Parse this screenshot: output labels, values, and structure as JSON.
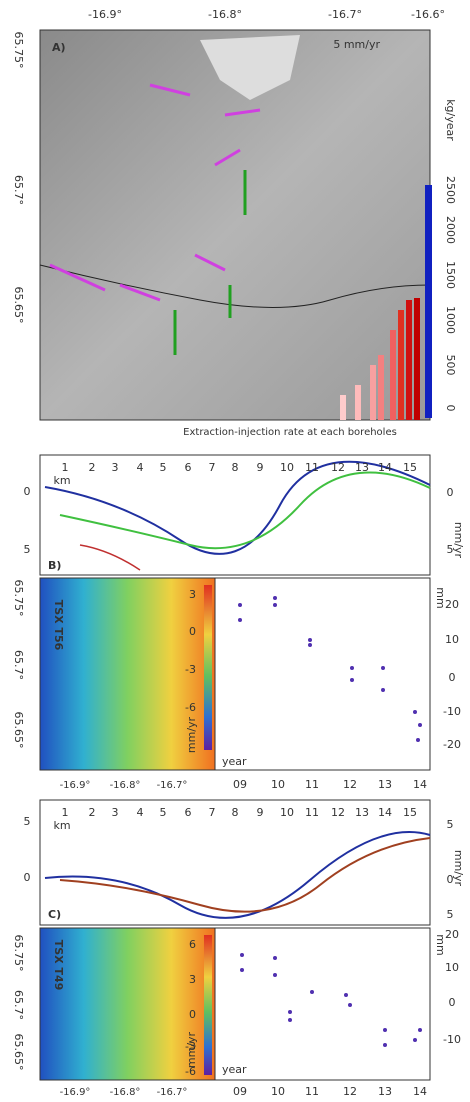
{
  "panel_a": {
    "label": "A)",
    "lon_ticks": [
      "-16.9°",
      "-16.8°",
      "-16.7°",
      "-16.6°"
    ],
    "lat_ticks": [
      "65.75°",
      "65.7°",
      "65.65°"
    ],
    "scale_label": "5 mm/yr",
    "rate_ticks": [
      "0",
      "500",
      "1000",
      "1500",
      "2000",
      "2500"
    ],
    "rate_unit": "kg/year",
    "caption": "Extraction-injection rate at each boreholes"
  },
  "panel_b": {
    "label": "B)",
    "profile": {
      "km_ticks": [
        "1",
        "2",
        "3",
        "4",
        "5",
        "6",
        "7",
        "8",
        "9",
        "10",
        "11",
        "12",
        "13",
        "14",
        "15"
      ],
      "km_label": "km",
      "left_ticks": [
        "0",
        "5"
      ],
      "right_ticks": [
        "0",
        "5"
      ],
      "unit": "mm/yr"
    },
    "map": {
      "track": "TSX T56",
      "lat_ticks": [
        "65.75°",
        "65.7°",
        "65.65°"
      ],
      "lon_ticks": [
        "-16.9°",
        "-16.8°",
        "-16.7°"
      ],
      "color_ticks": [
        "3",
        "0",
        "-3",
        "-6"
      ],
      "color_unit": "mm/yr"
    },
    "series": {
      "year_ticks": [
        "09",
        "10",
        "11",
        "12",
        "13",
        "14"
      ],
      "value_ticks": [
        "20",
        "10",
        "0",
        "-10",
        "-20"
      ],
      "unit": "mm",
      "year_label": "year"
    }
  },
  "panel_c": {
    "label": "C)",
    "profile": {
      "km_ticks": [
        "1",
        "2",
        "3",
        "4",
        "5",
        "6",
        "7",
        "8",
        "9",
        "10",
        "11",
        "12",
        "13",
        "14",
        "15"
      ],
      "km_label": "km",
      "left_ticks": [
        "5",
        "0"
      ],
      "right_ticks": [
        "5",
        "0",
        "5"
      ],
      "unit": "mm/yr"
    },
    "map": {
      "track": "TSX T49",
      "lat_ticks": [
        "65.75°",
        "65.7°",
        "65.65°"
      ],
      "lon_ticks": [
        "-16.9°",
        "-16.8°",
        "-16.7°"
      ],
      "color_ticks": [
        "6",
        "3",
        "0",
        "-3",
        "-6"
      ],
      "color_unit": "mm/yr"
    },
    "series": {
      "year_ticks": [
        "09",
        "10",
        "11",
        "12",
        "13",
        "14"
      ],
      "value_ticks": [
        "20",
        "10",
        "0",
        "-10"
      ],
      "unit": "mm",
      "year_label": "year"
    }
  }
}
